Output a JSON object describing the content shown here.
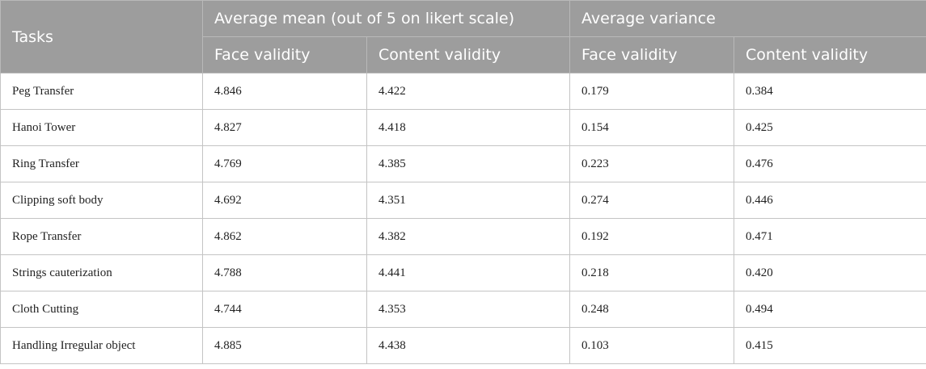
{
  "table": {
    "header": {
      "tasks": "Tasks",
      "group_mean": "Average mean (out of 5 on likert scale)",
      "group_variance": "Average variance",
      "sub_headers": [
        "Face validity",
        "Content validity",
        "Face validity",
        "Content validity"
      ]
    },
    "rows": [
      {
        "task": "Peg Transfer",
        "mean_face": "4.846",
        "mean_content": "4.422",
        "var_face": "0.179",
        "var_content": "0.384"
      },
      {
        "task": "Hanoi Tower",
        "mean_face": "4.827",
        "mean_content": "4.418",
        "var_face": "0.154",
        "var_content": "0.425"
      },
      {
        "task": "Ring Transfer",
        "mean_face": "4.769",
        "mean_content": "4.385",
        "var_face": "0.223",
        "var_content": "0.476"
      },
      {
        "task": "Clipping soft body",
        "mean_face": "4.692",
        "mean_content": "4.351",
        "var_face": "0.274",
        "var_content": "0.446"
      },
      {
        "task": "Rope Transfer",
        "mean_face": "4.862",
        "mean_content": "4.382",
        "var_face": "0.192",
        "var_content": "0.471"
      },
      {
        "task": "Strings cauterization",
        "mean_face": "4.788",
        "mean_content": "4.441",
        "var_face": "0.218",
        "var_content": "0.420"
      },
      {
        "task": "Cloth Cutting",
        "mean_face": "4.744",
        "mean_content": "4.353",
        "var_face": "0.248",
        "var_content": "0.494"
      },
      {
        "task": "Handling Irregular object",
        "mean_face": "4.885",
        "mean_content": "4.438",
        "var_face": "0.103",
        "var_content": "0.415"
      }
    ]
  }
}
